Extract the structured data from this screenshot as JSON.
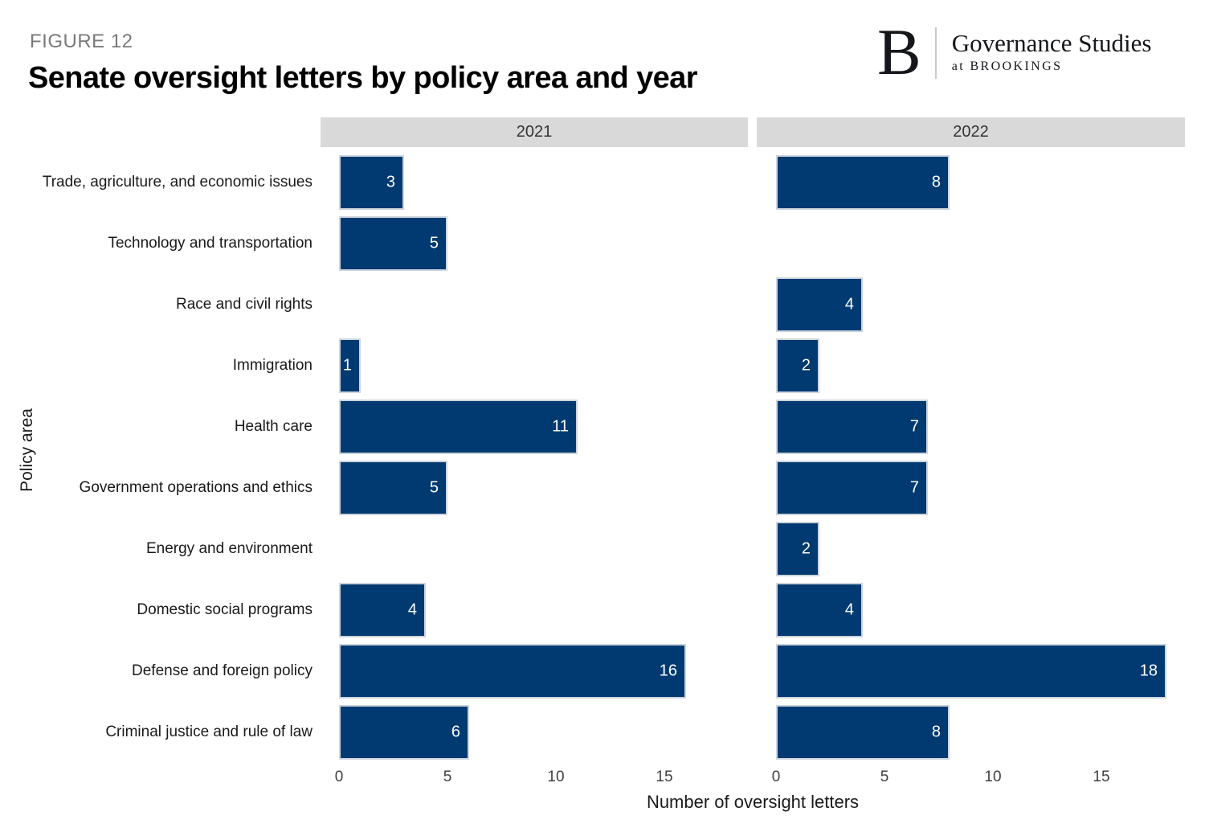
{
  "header": {
    "figure_label": "FIGURE 12",
    "title": "Senate oversight letters by policy area and year"
  },
  "logo": {
    "letter": "B",
    "name": "Governance Studies",
    "tagline": "at BROOKINGS"
  },
  "chart_data": {
    "type": "bar",
    "orientation": "horizontal",
    "title": "Senate oversight letters by policy area and year",
    "xlabel": "Number of oversight letters",
    "ylabel": "Policy area",
    "facets": [
      "2021",
      "2022"
    ],
    "categories": [
      "Trade, agriculture, and economic issues",
      "Technology and transportation",
      "Race and civil rights",
      "Immigration",
      "Health care",
      "Government operations and ethics",
      "Energy and environment",
      "Domestic social programs",
      "Defense and foreign policy",
      "Criminal justice and rule of law"
    ],
    "series": [
      {
        "name": "2021",
        "values": [
          3,
          5,
          null,
          1,
          11,
          5,
          null,
          4,
          16,
          6
        ]
      },
      {
        "name": "2022",
        "values": [
          8,
          null,
          4,
          2,
          7,
          7,
          2,
          4,
          18,
          8
        ]
      }
    ],
    "x_ticks": [
      0,
      5,
      10,
      15
    ],
    "xlim": [
      0,
      18
    ],
    "grid": false,
    "legend": "none",
    "bar_color": "#003a70",
    "bar_border_color": "#ccd4dd",
    "strip_color": "#d9d9d9",
    "value_label_color": "#ffffff"
  }
}
